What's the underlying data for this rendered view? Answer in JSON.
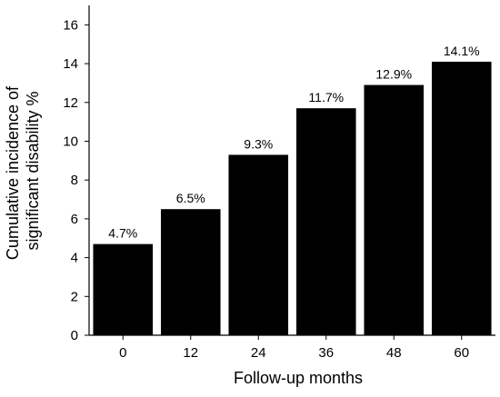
{
  "chart_data": {
    "type": "bar",
    "title": "",
    "xlabel": "Follow-up months",
    "ylabel_lines": [
      "Cumulative incidence of",
      "significant disability %"
    ],
    "categories": [
      "0",
      "12",
      "24",
      "36",
      "48",
      "60"
    ],
    "values": [
      4.7,
      6.5,
      9.3,
      11.7,
      12.9,
      14.1
    ],
    "data_labels": [
      "4.7%",
      "6.5%",
      "9.3%",
      "11.7%",
      "12.9%",
      "14.1%"
    ],
    "ylim": [
      0,
      17
    ],
    "yticks": [
      0,
      2,
      4,
      6,
      8,
      10,
      12,
      14,
      16
    ],
    "grid": false,
    "bar_color": "#000000",
    "axis_color": "#000000"
  }
}
